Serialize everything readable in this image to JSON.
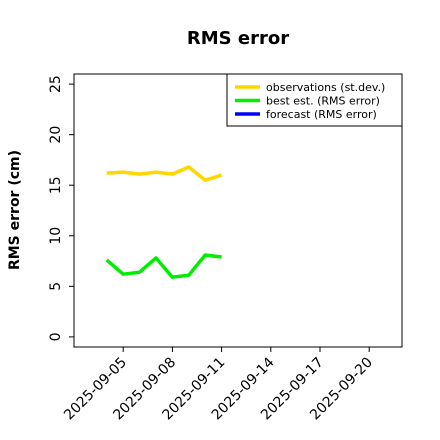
{
  "chart_data": {
    "type": "line",
    "title": "RMS error",
    "ylabel": "RMS error (cm)",
    "xlabel": "",
    "ylim": [
      -1,
      26
    ],
    "xlim": [
      "2025-09-02",
      "2025-09-22"
    ],
    "yticks": [
      0,
      5,
      10,
      15,
      20,
      25
    ],
    "xticks": [
      {
        "label": "2025-09-05",
        "date": "2025-09-05",
        "color": "#000000"
      },
      {
        "label": "2025-09-08",
        "date": "2025-09-08",
        "color": "#000000"
      },
      {
        "label": "2025-09-11",
        "date": "2025-09-11",
        "color": "#1a8a1a"
      },
      {
        "label": "2025-09-14",
        "date": "2025-09-14",
        "color": "#000000"
      },
      {
        "label": "2025-09-17",
        "date": "2025-09-17",
        "color": "#000000"
      },
      {
        "label": "2025-09-20",
        "date": "2025-09-20",
        "color": "#000000"
      }
    ],
    "grid": false,
    "legend_position": "top-right",
    "series": [
      {
        "name": "observations (st.dev.)",
        "color": "#ffd700",
        "x": [
          "2025-09-04",
          "2025-09-05",
          "2025-09-06",
          "2025-09-07",
          "2025-09-08",
          "2025-09-09",
          "2025-09-10",
          "2025-09-11"
        ],
        "y": [
          16.2,
          16.3,
          16.1,
          16.3,
          16.1,
          16.8,
          15.5,
          16.0
        ]
      },
      {
        "name": "best est. (RMS error)",
        "color": "#00ee00",
        "x": [
          "2025-09-04",
          "2025-09-05",
          "2025-09-06",
          "2025-09-07",
          "2025-09-08",
          "2025-09-09",
          "2025-09-10",
          "2025-09-11"
        ],
        "y": [
          7.6,
          6.2,
          6.4,
          7.8,
          5.9,
          6.1,
          8.1,
          7.9
        ]
      },
      {
        "name": "forecast (RMS error)",
        "color": "#0000ff",
        "x": [],
        "y": []
      }
    ]
  }
}
